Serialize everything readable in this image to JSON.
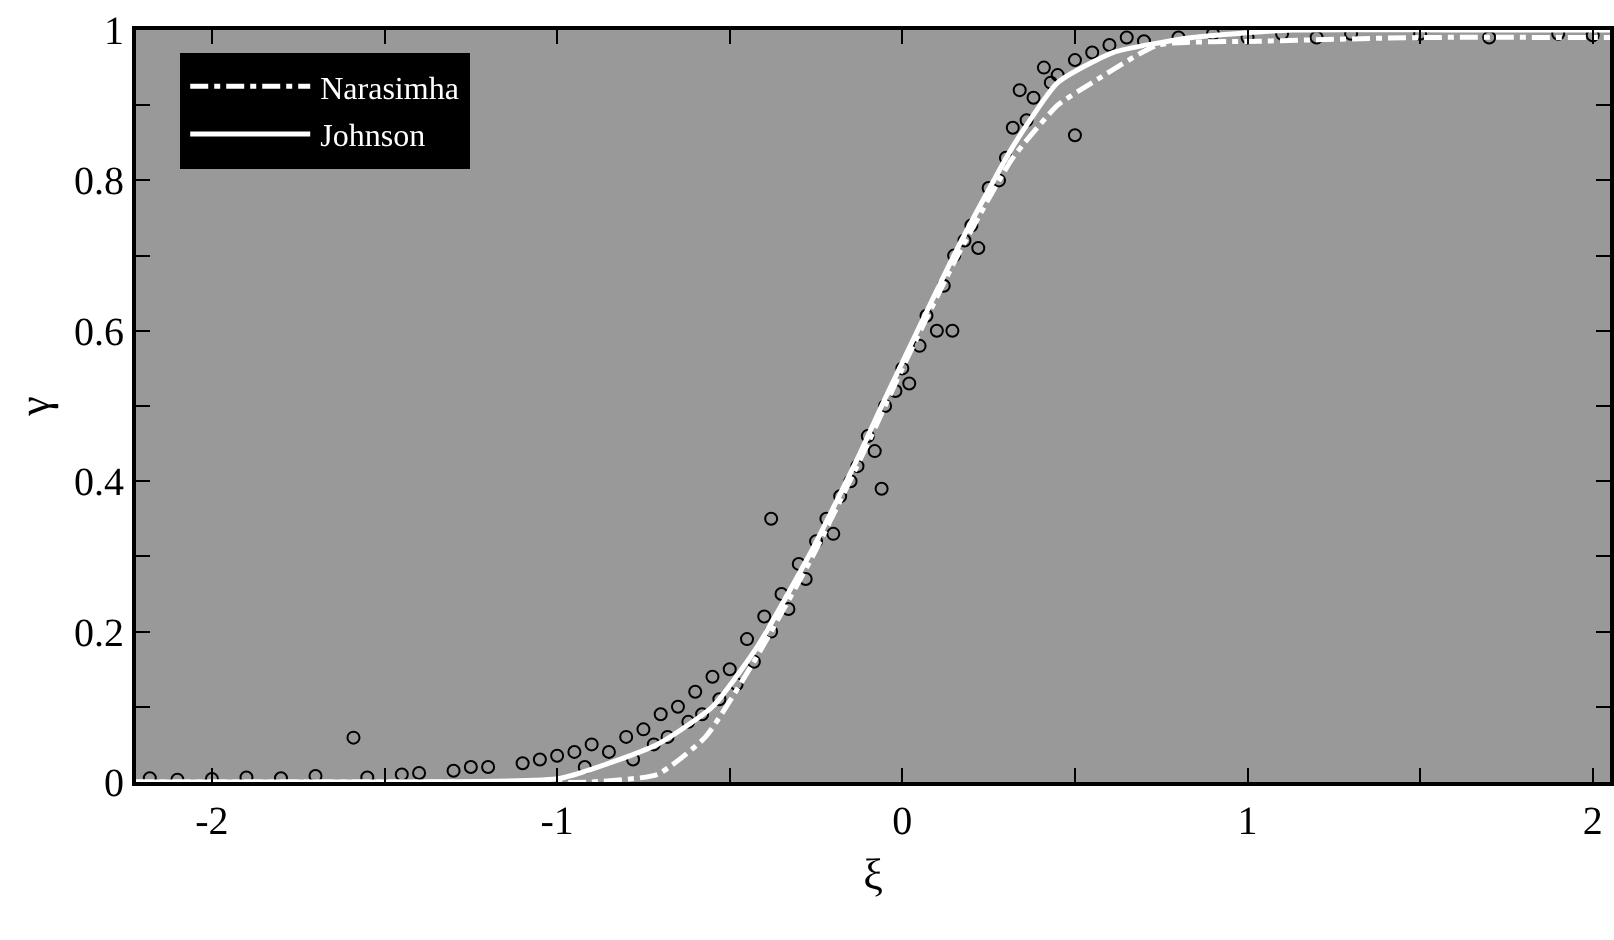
{
  "chart_data": {
    "type": "line",
    "xlabel": "ξ",
    "ylabel": "γ",
    "xlim": [
      -2.22,
      2.05
    ],
    "ylim": [
      0,
      1
    ],
    "xticks": [
      -2,
      {
        "value": -1.5,
        "label": null
      },
      -1,
      {
        "value": -0.5,
        "label": null
      },
      0,
      {
        "value": 0.5,
        "label": null
      },
      1,
      {
        "value": 1.5,
        "label": null
      },
      2
    ],
    "yticks": [
      0,
      {
        "value": 0.1,
        "label": null
      },
      0.2,
      {
        "value": 0.3,
        "label": null
      },
      0.4,
      {
        "value": 0.5,
        "label": null
      },
      0.6,
      {
        "value": 0.7,
        "label": null
      },
      0.8,
      {
        "value": 0.9,
        "label": null
      },
      1
    ],
    "grid": false,
    "legend": "top left",
    "series": [
      {
        "type": "scatter",
        "marker": "circle",
        "color": "#000000",
        "x": [
          -2.18,
          -2.1,
          -2.0,
          -1.9,
          -1.8,
          -1.7,
          -1.59,
          -1.55,
          -1.45,
          -1.4,
          -1.3,
          -1.25,
          -1.2,
          -1.1,
          -1.05,
          -1.0,
          -0.95,
          -0.92,
          -0.9,
          -0.85,
          -0.8,
          -0.78,
          -0.75,
          -0.72,
          -0.7,
          -0.68,
          -0.65,
          -0.62,
          -0.6,
          -0.58,
          -0.55,
          -0.53,
          -0.5,
          -0.48,
          -0.45,
          -0.43,
          -0.4,
          -0.38,
          -0.38,
          -0.35,
          -0.33,
          -0.3,
          -0.28,
          -0.25,
          -0.22,
          -0.2,
          -0.18,
          -0.15,
          -0.13,
          -0.1,
          -0.08,
          -0.06,
          -0.05,
          -0.02,
          0,
          0.02,
          0.05,
          0.07,
          0.1,
          0.12,
          0.145,
          0.15,
          0.18,
          0.2,
          0.22,
          0.25,
          0.28,
          0.3,
          0.32,
          0.34,
          0.36,
          0.38,
          0.41,
          0.43,
          0.45,
          0.5,
          0.5,
          0.55,
          0.6,
          0.65,
          0.7,
          0.8,
          0.9,
          1.0,
          1.1,
          1.2,
          1.3,
          1.5,
          1.7,
          1.9,
          2.0
        ],
        "values": [
          0.005,
          0.003,
          0.004,
          0.006,
          0.005,
          0.008,
          0.059,
          0.006,
          0.01,
          0.012,
          0.015,
          0.02,
          0.02,
          0.025,
          0.03,
          0.035,
          0.04,
          0.02,
          0.05,
          0.04,
          0.06,
          0.03,
          0.07,
          0.05,
          0.09,
          0.06,
          0.1,
          0.08,
          0.12,
          0.09,
          0.14,
          0.11,
          0.15,
          0.13,
          0.19,
          0.16,
          0.22,
          0.35,
          0.2,
          0.25,
          0.23,
          0.29,
          0.27,
          0.32,
          0.35,
          0.33,
          0.38,
          0.4,
          0.42,
          0.46,
          0.44,
          0.39,
          0.5,
          0.52,
          0.55,
          0.53,
          0.58,
          0.62,
          0.6,
          0.66,
          0.6,
          0.7,
          0.72,
          0.74,
          0.71,
          0.79,
          0.8,
          0.83,
          0.87,
          0.92,
          0.88,
          0.91,
          0.95,
          0.93,
          0.94,
          0.86,
          0.96,
          0.97,
          0.98,
          0.99,
          0.985,
          0.99,
          0.995,
          0.99,
          0.995,
          0.99,
          0.995,
          0.995,
          0.99,
          0.995,
          0.993
        ]
      },
      {
        "name": "Narasimha",
        "color": "#ffffff",
        "line_style": "dashed",
        "x": [
          -2.22,
          -1.2,
          -0.9,
          -0.71,
          -0.57,
          -0.43,
          -0.26,
          -0.1,
          0.0,
          0.16,
          0.32,
          0.45,
          0.55,
          0.74,
          1.03,
          1.5,
          2.05
        ],
        "values": [
          0,
          0,
          0,
          0.01,
          0.06,
          0.16,
          0.3,
          0.45,
          0.55,
          0.7,
          0.83,
          0.9,
          0.93,
          0.98,
          0.985,
          0.99,
          0.99
        ]
      },
      {
        "name": "Johnson",
        "color": "#ffffff",
        "line_style": "solid",
        "x": [
          -2.22,
          -1.4,
          -0.99,
          -0.71,
          -0.55,
          -0.42,
          -0.26,
          -0.13,
          -0.06,
          0.16,
          0.32,
          0.45,
          0.61,
          0.84,
          1.13,
          1.6,
          2.05
        ],
        "values": [
          0,
          0,
          0.005,
          0.05,
          0.1,
          0.18,
          0.31,
          0.43,
          0.5,
          0.71,
          0.845,
          0.93,
          0.97,
          0.99,
          1.0,
          1.0,
          1.0
        ]
      }
    ]
  }
}
